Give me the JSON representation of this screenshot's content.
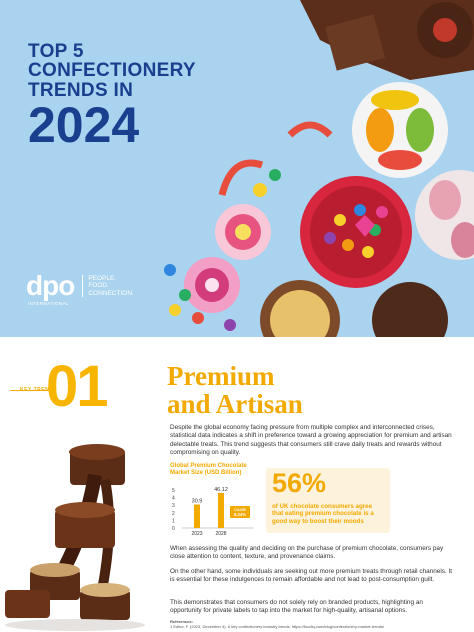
{
  "hero": {
    "title_line1": "TOP 5",
    "title_line2": "CONFECTIONERY",
    "title_line3": "TRENDS IN",
    "title_year": "2024",
    "brand_logo": "dpo",
    "brand_sub": "INTERNATIONAL",
    "brand_tag1": "PEOPLE.",
    "brand_tag2": "FOOD.",
    "brand_tag3": "CONNECTION."
  },
  "section": {
    "key_trend_label": "KEY TREND",
    "number": "01",
    "heading_line1": "Premium",
    "heading_line2": "and Artisan",
    "para1": "Despite the global economy facing pressure from multiple complex and interconnected crises, statistical data indicates a shift in preference toward a growing appreciation for premium and artisan delectable treats. This trend suggests that consumers still crave daily treats and rewards without compromising on quality.",
    "para2": "When assessing the quality and deciding on the purchase of premium chocolate, consumers pay close attention to content, texture, and provenance claims.",
    "para3": "On the other hand, some individuals are seeking out more premium treats through retail channels. It is essential for these indulgences to remain affordable and not lead to post-consumption guilt.",
    "para4": "This demonstrates that consumers do not solely rely on branded products, highlighting an opportunity for private labels to tap into the market for high-quality, artisanal options.",
    "refs_title": "References:",
    "refs_line": "1 Editor, F. (2023, December 4). 6 key confectionery industry trends. https://foodiq.com/blog/confectionery-market-trends/"
  },
  "stat": {
    "value": "56%",
    "text": "of UK chocolate consumers agree that eating premium chocolate is a good way to boost their moods"
  },
  "colors": {
    "accent": "#f2a900",
    "navy": "#1b3f8f",
    "hero_bg": "#a9d3ee"
  },
  "chart_data": {
    "type": "bar",
    "title": "Global Premium Chocolate Market Size (USD Billion)",
    "categories": [
      "2023",
      "2028"
    ],
    "values": [
      30.9,
      46.12
    ],
    "value_labels": [
      "30.9",
      "46.12"
    ],
    "yticks": [
      "0",
      "1",
      "2",
      "3",
      "4",
      "5"
    ],
    "ylim": [
      0,
      50
    ],
    "annotation": "CAGR 8.34%"
  }
}
